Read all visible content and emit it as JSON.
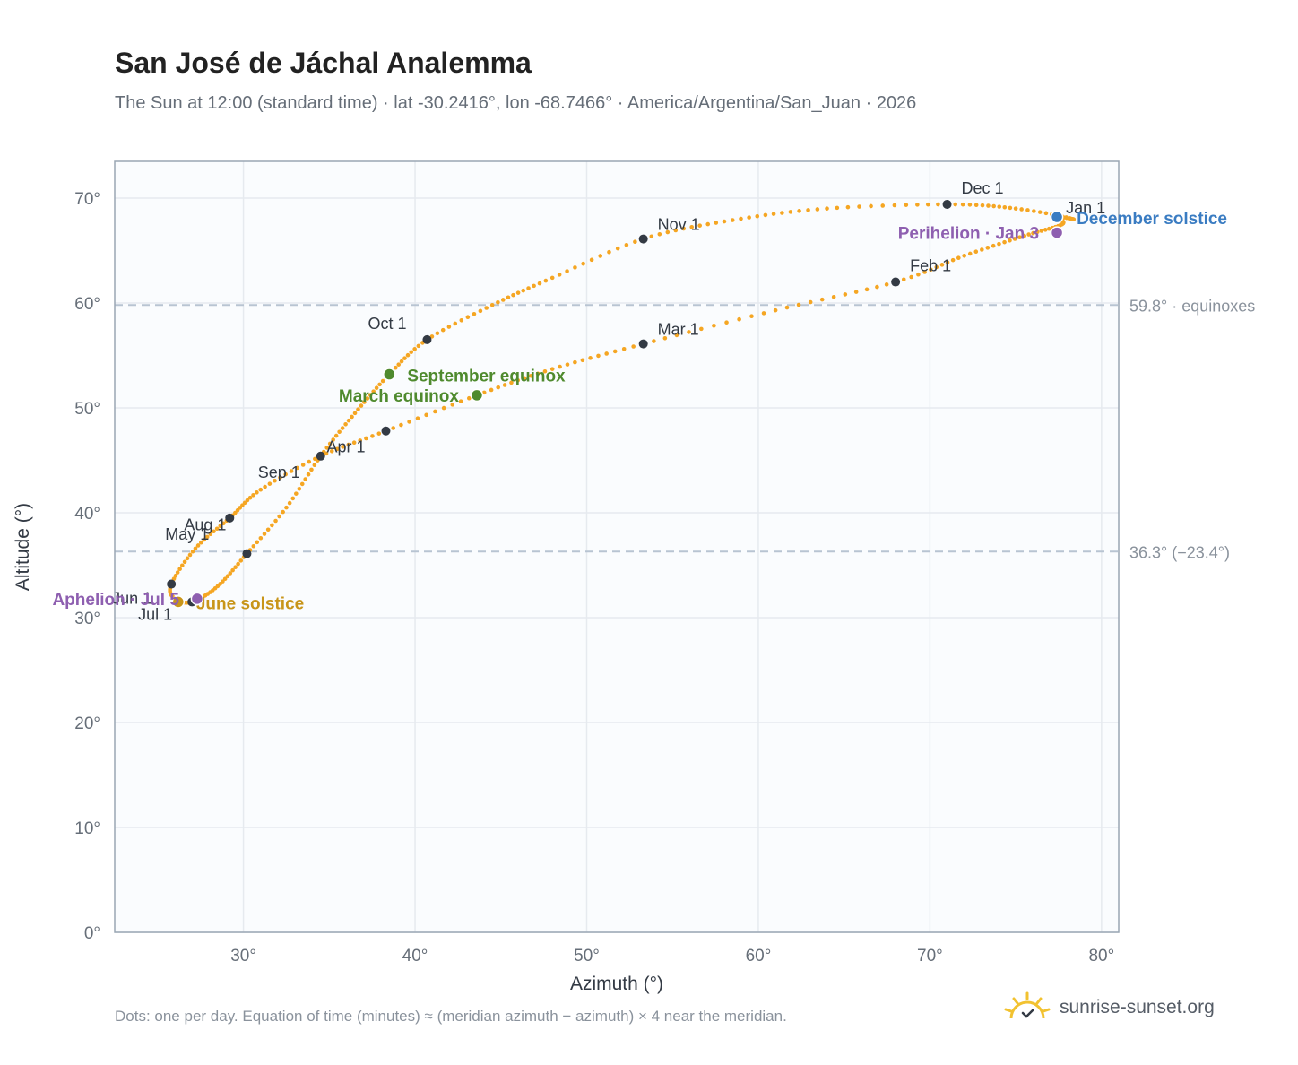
{
  "title": "San José de Jáchal Analemma",
  "subtitle": "The Sun at 12:00 (standard time) · lat -30.2416°, lon -68.7466° · America/Argentina/San_Juan · 2026",
  "footnote": "Dots: one per day. Equation of time (minutes) ≈ (meridian azimuth − azimuth) × 4 near the meridian.",
  "brand": {
    "name": "sunrise-sunset.org",
    "icon": "sun-icon"
  },
  "colors": {
    "path": "#f5a623",
    "month_marker": "#333a44",
    "equinox": "#4f8a2e",
    "december_solstice": "#3a7cc2",
    "june_solstice": "#c8951a",
    "apsis": "#8e5fb0",
    "reference_line": "#b8c4d2",
    "plot_bg": "#fafcfe",
    "grid": "#e6eaef",
    "frame": "#9aa6b4"
  },
  "chart_data": {
    "type": "scatter",
    "xlabel": "Azimuth (°)",
    "ylabel": "Altitude (°)",
    "xlim": [
      22.5,
      81
    ],
    "ylim": [
      0,
      73.5
    ],
    "x_ticks": [
      30,
      40,
      50,
      60,
      70,
      80
    ],
    "y_ticks": [
      0,
      10,
      20,
      30,
      40,
      50,
      60,
      70
    ],
    "x_tick_labels": [
      "30°",
      "40°",
      "50°",
      "60°",
      "70°",
      "80°"
    ],
    "y_tick_labels": [
      "0°",
      "10°",
      "20°",
      "30°",
      "40°",
      "50°",
      "60°",
      "70°"
    ],
    "grid": true,
    "reference_lines": [
      {
        "altitude": 59.8,
        "label": "59.8° · equinoxes"
      },
      {
        "altitude": 36.3,
        "label": "36.3° (−23.4°)"
      }
    ],
    "series": [
      {
        "points_per": "day",
        "path": [
          [
            77.4,
            68.2
          ],
          [
            77.7,
            67.5
          ],
          [
            75.5,
            66.4
          ],
          [
            72.0,
            64.5
          ],
          [
            68.0,
            62.0
          ],
          [
            61.0,
            59.3
          ],
          [
            53.3,
            56.1
          ],
          [
            48.0,
            53.7
          ],
          [
            43.6,
            51.2
          ],
          [
            38.3,
            47.8
          ],
          [
            34.5,
            45.4
          ],
          [
            31.0,
            42.2
          ],
          [
            29.2,
            39.5
          ],
          [
            27.2,
            36.6
          ],
          [
            25.8,
            33.2
          ],
          [
            26.0,
            31.8
          ],
          [
            27.0,
            31.5
          ],
          [
            28.5,
            33.0
          ],
          [
            30.2,
            36.1
          ],
          [
            32.5,
            40.5
          ],
          [
            34.5,
            45.4
          ],
          [
            36.5,
            49.5
          ],
          [
            38.5,
            53.2
          ],
          [
            40.7,
            56.5
          ],
          [
            44.5,
            59.8
          ],
          [
            48.0,
            62.4
          ],
          [
            53.3,
            66.1
          ],
          [
            58.5,
            67.9
          ],
          [
            64.0,
            69.0
          ],
          [
            71.0,
            69.4
          ],
          [
            75.0,
            69.0
          ],
          [
            78.3,
            68.0
          ],
          [
            77.4,
            68.2
          ]
        ]
      }
    ],
    "month_markers": [
      {
        "label": "Jan 1",
        "x": 77.4,
        "y": 68.2
      },
      {
        "label": "Feb 1",
        "x": 68.0,
        "y": 62.0
      },
      {
        "label": "Mar 1",
        "x": 53.3,
        "y": 56.1
      },
      {
        "label": "Apr 1",
        "x": 38.3,
        "y": 47.8
      },
      {
        "label": "May 1",
        "x": 29.2,
        "y": 39.5
      },
      {
        "label": "Jun 1",
        "x": 25.8,
        "y": 33.2
      },
      {
        "label": "Jul 1",
        "x": 27.0,
        "y": 31.5
      },
      {
        "label": "Aug 1",
        "x": 30.2,
        "y": 36.1
      },
      {
        "label": "Sep 1",
        "x": 34.5,
        "y": 45.4
      },
      {
        "label": "Oct 1",
        "x": 40.7,
        "y": 56.5
      },
      {
        "label": "Nov 1",
        "x": 53.3,
        "y": 66.1
      },
      {
        "label": "Dec 1",
        "x": 71.0,
        "y": 69.4
      }
    ],
    "events": [
      {
        "label": "December solstice",
        "x": 77.4,
        "y": 68.2,
        "color_key": "december_solstice"
      },
      {
        "label": "Perihelion · Jan 3",
        "x": 77.4,
        "y": 66.7,
        "color_key": "apsis"
      },
      {
        "label": "March equinox",
        "x": 43.6,
        "y": 51.2,
        "color_key": "equinox"
      },
      {
        "label": "September equinox",
        "x": 38.5,
        "y": 53.2,
        "color_key": "equinox"
      },
      {
        "label": "June solstice",
        "x": 26.2,
        "y": 31.5,
        "color_key": "june_solstice"
      },
      {
        "label": "Aphelion · Jul 5",
        "x": 27.3,
        "y": 31.8,
        "color_key": "apsis"
      }
    ]
  }
}
